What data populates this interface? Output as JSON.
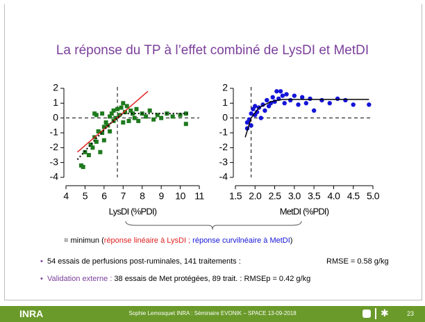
{
  "title": "La réponse  du TP à l’effet combiné de LysDI et MetDI",
  "chart_data": [
    {
      "type": "scatter",
      "xlabel": "LysDI (%PDI)",
      "color": "#1e7a1e",
      "marker": "square",
      "xlim": [
        4,
        11
      ],
      "ylim": [
        -4,
        2
      ],
      "xticks": [
        4,
        5,
        6,
        7,
        8,
        9,
        10,
        11
      ],
      "yticks": [
        2,
        1,
        0,
        -1,
        -2,
        -3,
        -4
      ],
      "vline": 6.7,
      "hline": 0,
      "x": [
        4.8,
        4.9,
        5.0,
        5.2,
        5.3,
        5.4,
        5.5,
        5.6,
        5.7,
        5.8,
        5.9,
        6.0,
        6.0,
        6.1,
        6.2,
        6.3,
        6.3,
        6.4,
        6.5,
        6.5,
        6.6,
        6.7,
        6.8,
        6.9,
        7.0,
        7.0,
        7.1,
        7.2,
        7.3,
        7.4,
        7.5,
        7.6,
        7.7,
        7.8,
        8.0,
        8.2,
        8.4,
        8.6,
        8.8,
        9.0,
        9.3,
        9.6,
        10.0,
        10.3,
        10.3,
        5.5,
        5.6,
        5.9
      ],
      "values": [
        -3.2,
        -3.3,
        -2.3,
        -2.5,
        -1.8,
        -2.0,
        -1.3,
        -1.6,
        -0.9,
        -2.3,
        -1.0,
        -0.6,
        -1.5,
        -0.3,
        -0.5,
        0.1,
        -0.9,
        0.3,
        -0.2,
        0.5,
        0.0,
        0.6,
        0.2,
        0.7,
        1.0,
        -0.3,
        0.4,
        0.8,
        -0.2,
        0.5,
        0.3,
        0.0,
        0.6,
        -0.2,
        0.3,
        0.1,
        0.5,
        -0.1,
        0.2,
        0.0,
        0.3,
        0.1,
        0.2,
        -0.4,
        0.3,
        0.3,
        0.2,
        0.3
      ],
      "lines": [
        {
          "color": "#e02020",
          "style": "solid",
          "x": [
            4.6,
            8.3
          ],
          "values": [
            -2.3,
            1.8
          ]
        },
        {
          "color": "#000000",
          "style": "dotted",
          "x": [
            4.6,
            5.5,
            6.3,
            7.0,
            10.4
          ],
          "values": [
            -2.8,
            -1.5,
            -0.4,
            0.3,
            0.3
          ]
        }
      ]
    },
    {
      "type": "scatter",
      "xlabel": "MetDI (%PDI)",
      "color": "#1414d8",
      "marker": "circle",
      "xlim": [
        1.5,
        5.0
      ],
      "ylim": [
        -4,
        2
      ],
      "xticks": [
        1.5,
        {
          "value": 2,
          "label": "2.0"
        },
        2.5,
        {
          "value": 3,
          "label": "3.0"
        },
        3.5,
        {
          "value": 4,
          "label": "4.0"
        },
        4.5,
        {
          "value": 5,
          "label": "5.0"
        }
      ],
      "yticks": [
        2,
        1,
        0,
        -1,
        -2,
        -3,
        -4
      ],
      "vline": 1.9,
      "hline": 0,
      "x": [
        1.8,
        1.8,
        1.85,
        1.9,
        1.9,
        1.95,
        2.0,
        2.0,
        2.05,
        2.1,
        2.15,
        2.2,
        2.25,
        2.3,
        2.35,
        2.4,
        2.45,
        2.5,
        2.55,
        2.6,
        2.65,
        2.7,
        2.75,
        2.8,
        2.9,
        3.0,
        3.1,
        3.2,
        3.3,
        3.4,
        3.5,
        3.7,
        3.9,
        4.1,
        4.3,
        4.5,
        4.9
      ],
      "values": [
        -0.3,
        -0.7,
        -0.1,
        0.3,
        -0.5,
        0.6,
        0.2,
        0.8,
        0.4,
        0.7,
        0.0,
        0.9,
        0.5,
        1.2,
        0.8,
        1.0,
        1.4,
        1.1,
        1.8,
        1.3,
        1.8,
        1.5,
        1.0,
        1.6,
        1.2,
        1.5,
        0.9,
        1.4,
        1.0,
        1.3,
        0.5,
        1.2,
        1.0,
        1.3,
        1.2,
        0.9,
        0.9
      ],
      "lines": [
        {
          "color": "#000000",
          "style": "solid",
          "x": [
            1.75,
            1.9,
            2.1,
            2.4,
            2.7,
            4.9
          ],
          "values": [
            -1.3,
            0.0,
            0.7,
            1.1,
            1.25,
            1.25
          ]
        }
      ]
    }
  ],
  "note": {
    "a": "= minimun (",
    "b": "réponse linéaire à  LysDI ;",
    "c": " réponse curvilnéaire à MetDI",
    "d": ")"
  },
  "bullets": [
    {
      "a": "54 essais de perfusions post-ruminales, 141 traitements :",
      "b": "RMSE  = 0.58 g/kg"
    },
    {
      "a": "Validation externe :",
      "b": " 38 essais de Met protégées, 89 trait. : RMSEp = 0.42 g/kg"
    }
  ],
  "footer": {
    "logo": "INRA",
    "text": "Sophie Lemosquet INRA : Séminaire EVONIK – SPACE 13-09-2018",
    "page": "23"
  }
}
